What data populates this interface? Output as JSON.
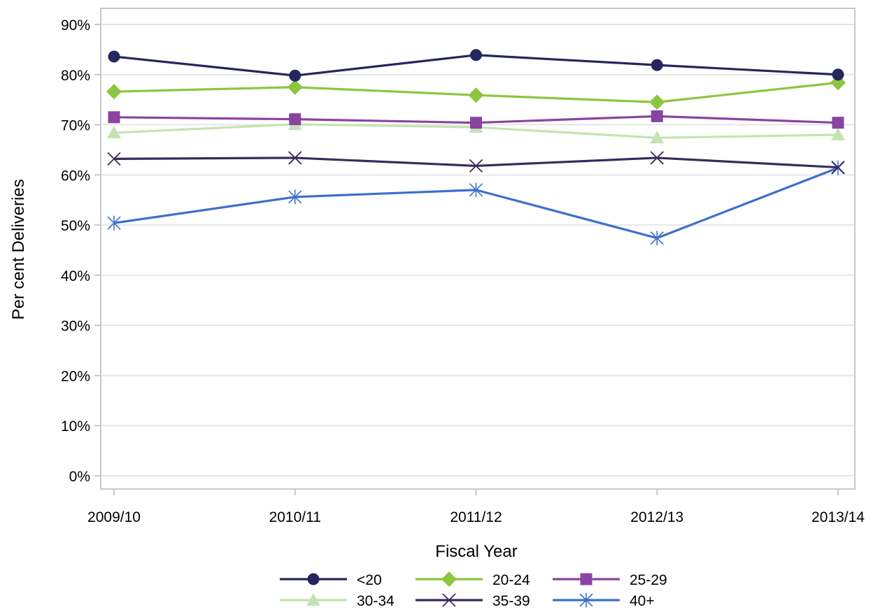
{
  "chart_data": {
    "type": "line",
    "title": "",
    "xlabel": "Fiscal Year",
    "ylabel": "Per cent Deliveries",
    "categories": [
      "2009/10",
      "2010/11",
      "2011/12",
      "2012/13",
      "2013/14"
    ],
    "ylim": [
      0,
      90
    ],
    "yticks": [
      0,
      10,
      20,
      30,
      40,
      50,
      60,
      70,
      80,
      90
    ],
    "ytick_labels": [
      "0%",
      "10%",
      "20%",
      "30%",
      "40%",
      "50%",
      "60%",
      "70%",
      "80%",
      "90%"
    ],
    "grid": true,
    "legend_position": "bottom",
    "series": [
      {
        "name": "<20",
        "values": [
          83.6,
          79.8,
          83.9,
          81.9,
          80.0
        ],
        "color": "#24265e",
        "marker": "circle"
      },
      {
        "name": "20-24",
        "values": [
          76.6,
          77.5,
          75.9,
          74.5,
          78.4
        ],
        "color": "#8cc63f",
        "marker": "diamond"
      },
      {
        "name": "25-29",
        "values": [
          71.5,
          71.1,
          70.4,
          71.7,
          70.4
        ],
        "color": "#8b43a0",
        "marker": "square"
      },
      {
        "name": "30-34",
        "values": [
          68.4,
          70.1,
          69.5,
          67.4,
          68.0
        ],
        "color": "#c5e3b2",
        "marker": "triangle"
      },
      {
        "name": "35-39",
        "values": [
          63.2,
          63.4,
          61.8,
          63.4,
          61.5
        ],
        "color": "#3a2a5a",
        "marker": "x"
      },
      {
        "name": "40+",
        "values": [
          50.4,
          55.6,
          57.0,
          47.4,
          61.4
        ],
        "color": "#3d6fcc",
        "marker": "asterisk"
      }
    ]
  }
}
